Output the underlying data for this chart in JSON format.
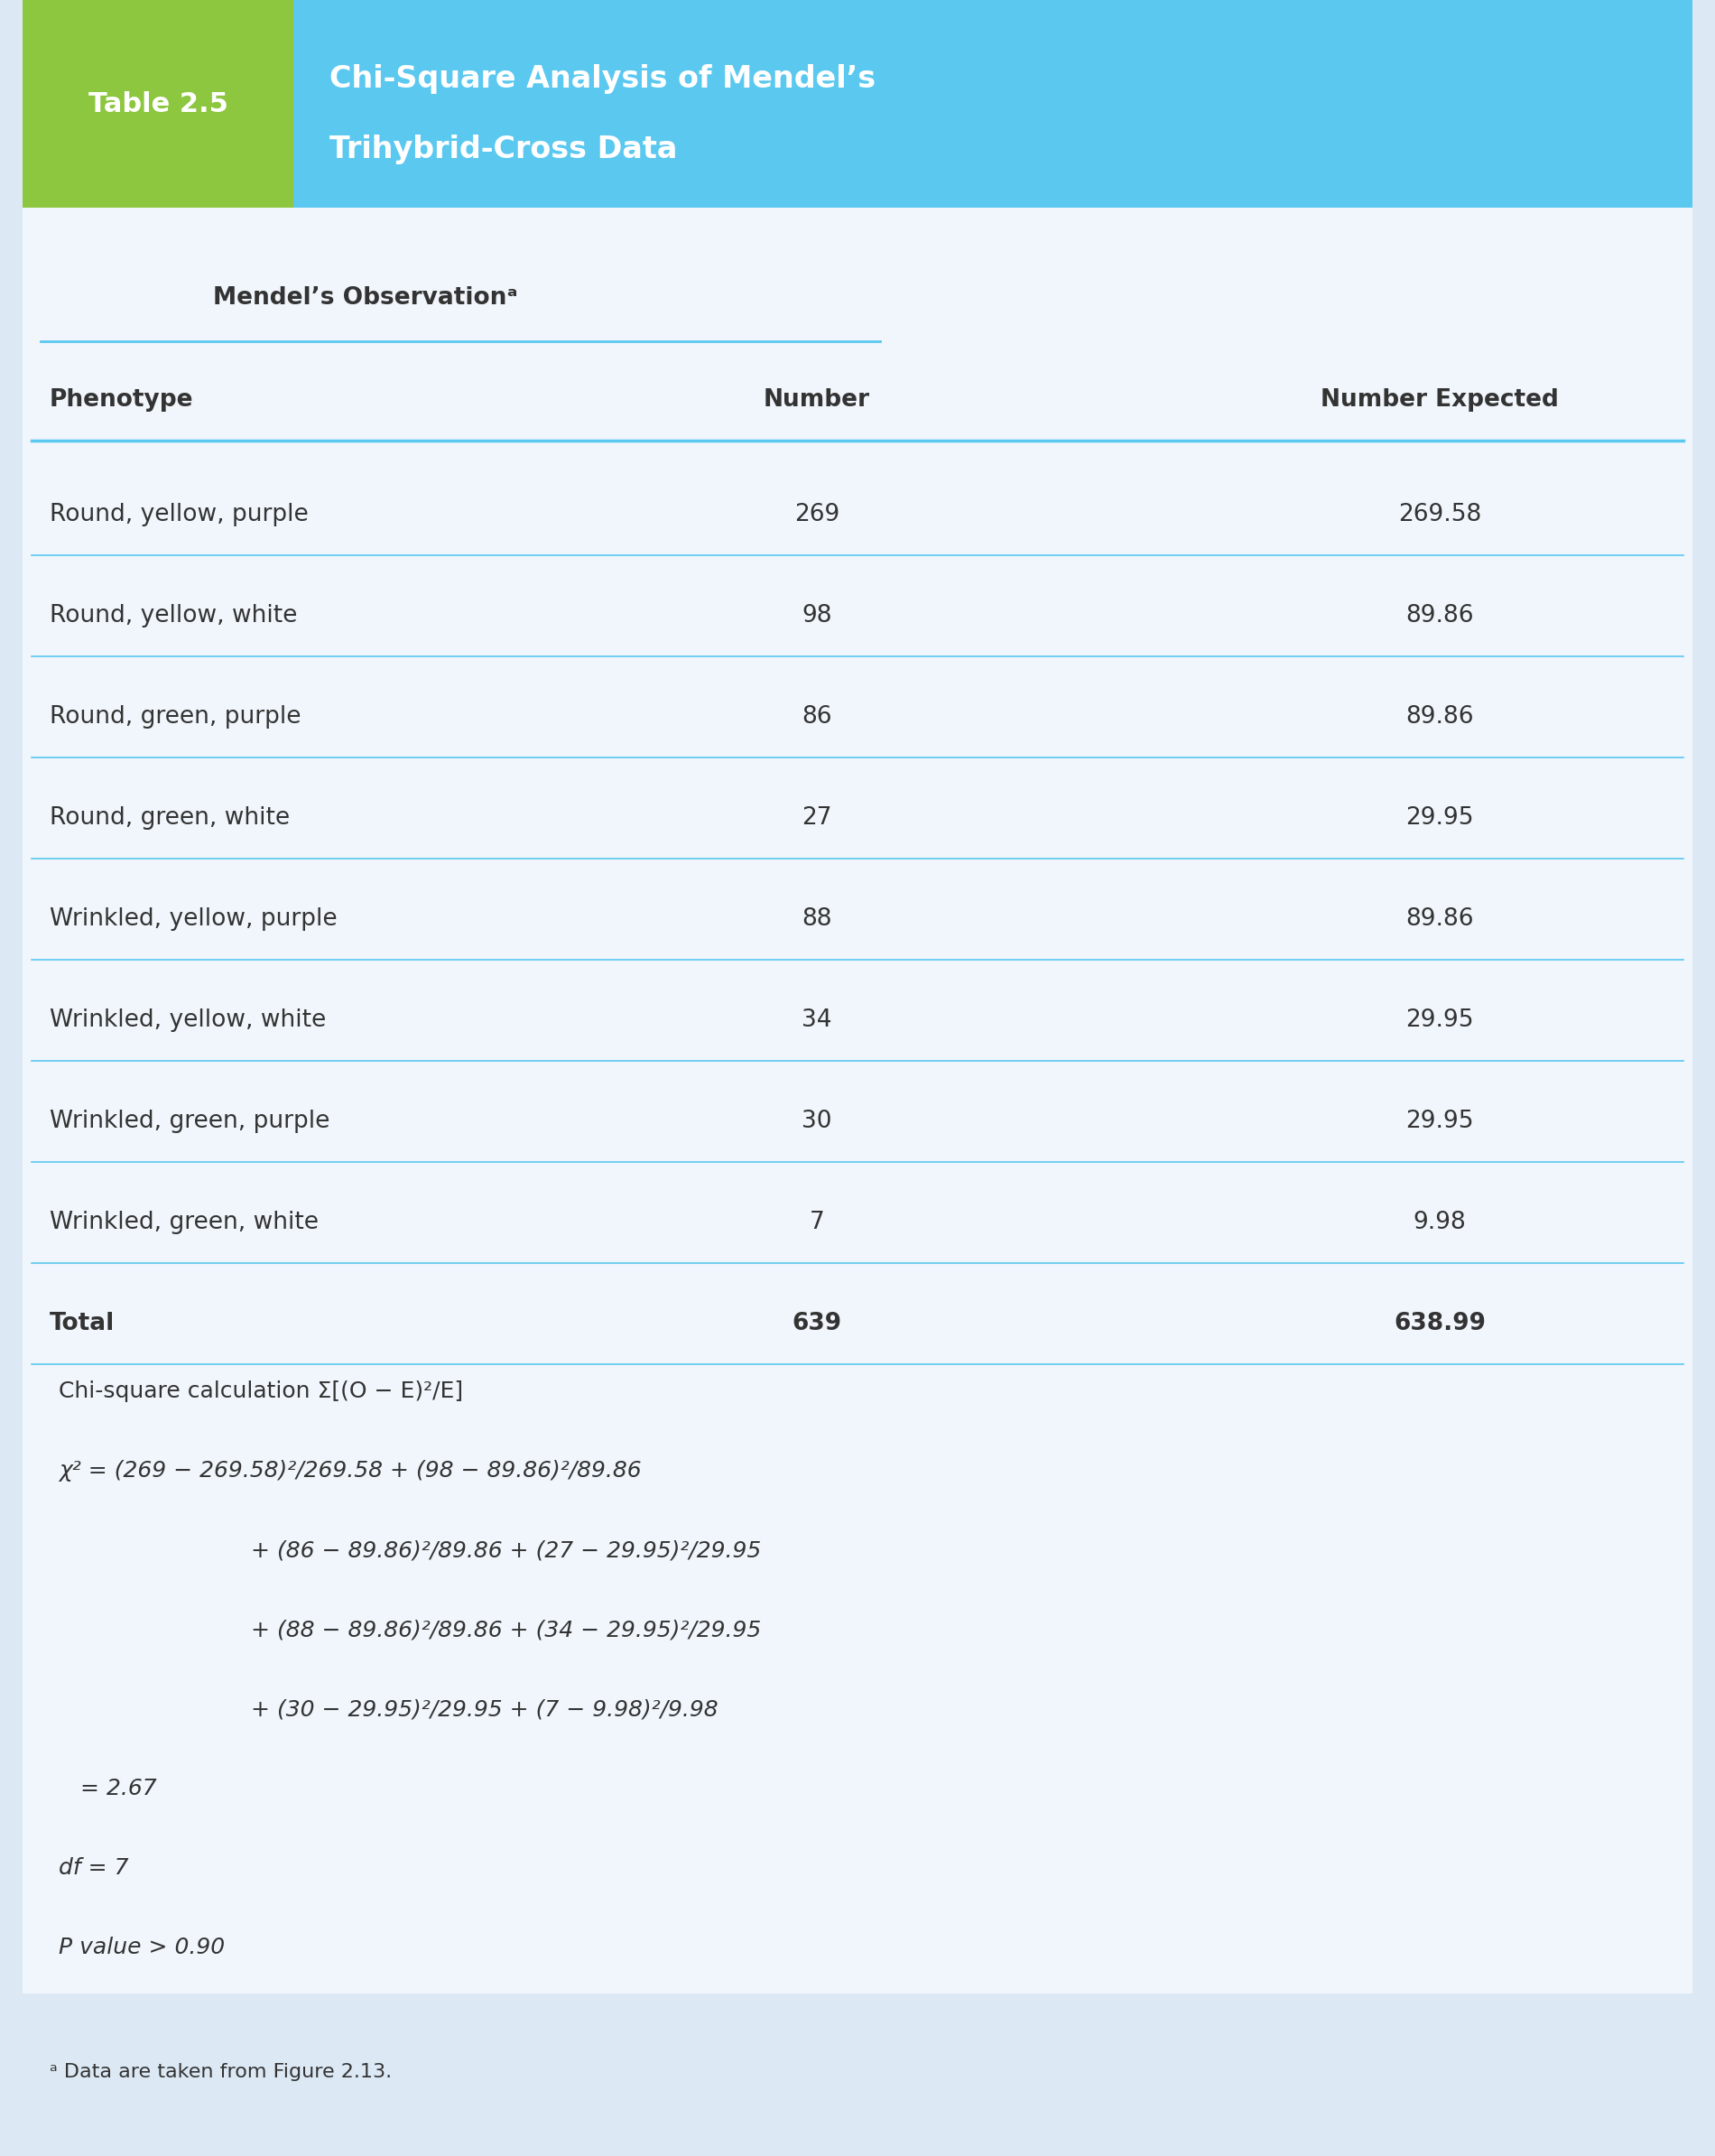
{
  "fig_width": 19.0,
  "fig_height": 23.88,
  "bg_color": "#dce9f5",
  "header_left_color": "#8dc63f",
  "header_right_color": "#5bc8f0",
  "table_label": "Table 2.5",
  "table_title_line1": "Chi-Square Analysis of Mendel’s",
  "table_title_line2": "Trihybrid-Cross Data",
  "subheader": "Mendel’s Observationᵃ",
  "col_headers": [
    "Phenotype",
    "Number",
    "Number Expected"
  ],
  "phenotypes": [
    "Round, yellow, purple",
    "Round, yellow, white",
    "Round, green, purple",
    "Round, green, white",
    "Wrinkled, yellow, purple",
    "Wrinkled, yellow, white",
    "Wrinkled, green, purple",
    "Wrinkled, green, white",
    "Total"
  ],
  "numbers": [
    "269",
    "98",
    "86",
    "27",
    "88",
    "34",
    "30",
    "7",
    "639"
  ],
  "expected": [
    "269.58",
    "89.86",
    "89.86",
    "29.95",
    "89.86",
    "29.95",
    "29.95",
    "9.98",
    "638.99"
  ],
  "calc_lines": [
    "Chi-square calculation Σ[(O − E)²/E]",
    "χ² = (269 − 269.58)²/269.58 + (98 − 89.86)²/89.86",
    "      + (86 − 89.86)²/89.86 + (27 − 29.95)²/29.95",
    "      + (88 − 89.86)²/89.86 + (34 − 29.95)²/29.95",
    "      + (30 − 29.95)²/29.95 + (7 − 9.98)²/9.98",
    "   = 2.67",
    "df = 7",
    "P value > 0.90"
  ],
  "footnote": "ᵃ Data are taken from Figure 2.13.",
  "line_color": "#5bc8f0",
  "text_color": "#333333",
  "header_text_color": "#ffffff"
}
